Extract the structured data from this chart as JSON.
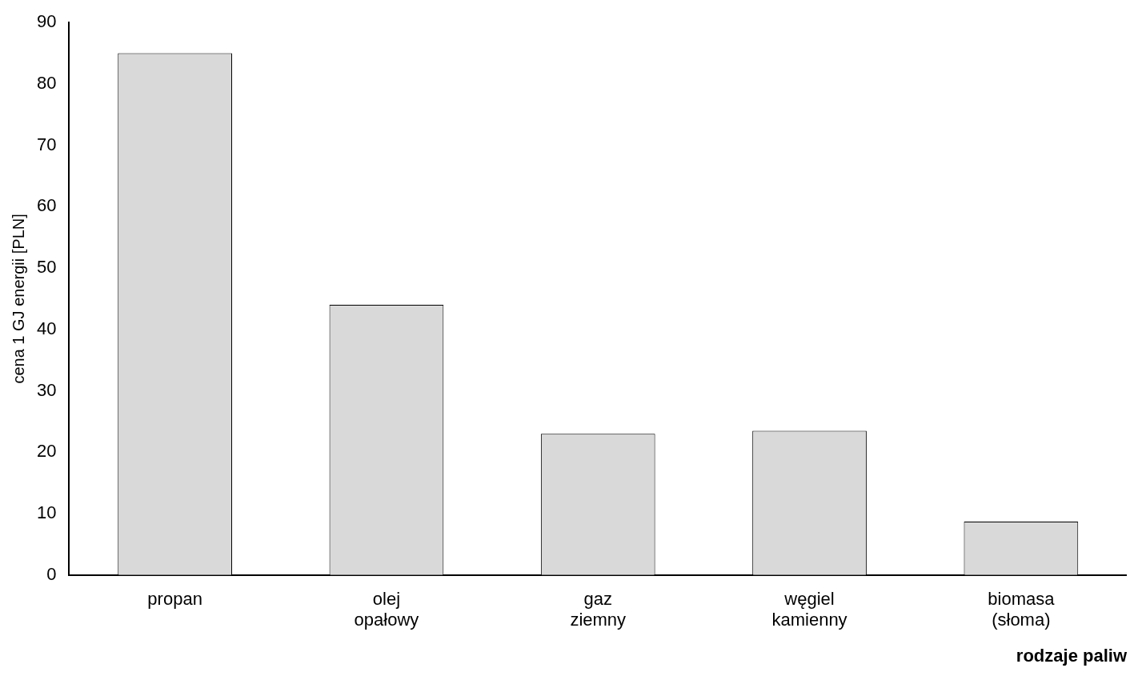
{
  "chart_data": {
    "type": "bar",
    "xlabel": "rodzaje paliw",
    "ylabel": "cena 1 GJ energii [PLN]",
    "categories": [
      "propan",
      "olej opałowy",
      "gaz ziemny",
      "węgiel kamienny",
      "biomasa (słoma)"
    ],
    "values": [
      85,
      44,
      23,
      23.5,
      8.7
    ],
    "color": "#d9d9d9",
    "ylim": [
      0,
      90
    ],
    "yticks": [
      0,
      10,
      20,
      30,
      40,
      50,
      60,
      70,
      80,
      90
    ],
    "grid": false,
    "legend": false
  }
}
